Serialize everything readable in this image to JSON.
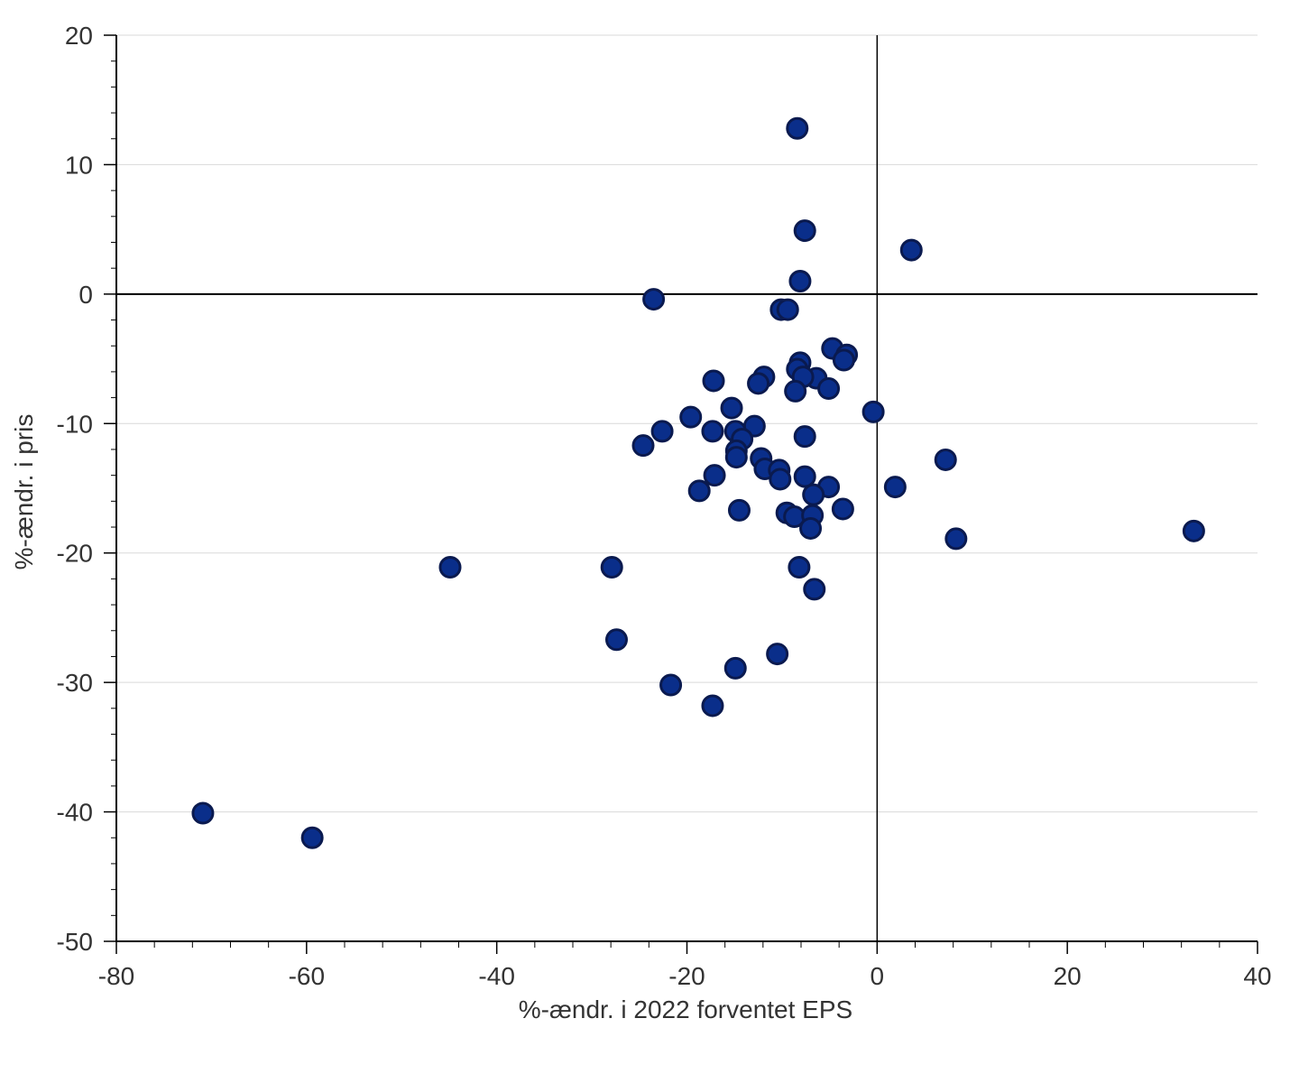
{
  "chart_data": {
    "type": "scatter",
    "title": "",
    "xlabel": "%-ændr. i 2022 forventet EPS",
    "ylabel": "%-ændr. i pris",
    "xlim": [
      -80,
      40
    ],
    "ylim": [
      -50,
      20
    ],
    "x_ticks": [
      "-80",
      "-60",
      "-40",
      "-20",
      "0",
      "20",
      "40"
    ],
    "y_ticks": [
      "20",
      "10",
      "0",
      "-10",
      "-20",
      "-30",
      "-40",
      "-50"
    ],
    "grid": "horizontal",
    "legend": "none",
    "colors": {
      "marker_fill": "#0a2e8a",
      "marker_edge": "#0a1a4f",
      "grid": "#d9d9d9",
      "axis": "#000000"
    },
    "series": [
      {
        "points": [
          [
            -8.4,
            12.8
          ],
          [
            -7.6,
            4.9
          ],
          [
            3.6,
            3.4
          ],
          [
            -8.1,
            1.0
          ],
          [
            -23.5,
            -0.4
          ],
          [
            -10.1,
            -1.2
          ],
          [
            -9.4,
            -1.2
          ],
          [
            -4.7,
            -4.2
          ],
          [
            -3.2,
            -4.7
          ],
          [
            -3.5,
            -5.1
          ],
          [
            -8.1,
            -5.3
          ],
          [
            -8.4,
            -5.8
          ],
          [
            -11.9,
            -6.4
          ],
          [
            -17.2,
            -6.7
          ],
          [
            -6.4,
            -6.5
          ],
          [
            -7.8,
            -6.4
          ],
          [
            -12.5,
            -6.9
          ],
          [
            -5.1,
            -7.3
          ],
          [
            -8.6,
            -7.5
          ],
          [
            -15.3,
            -8.8
          ],
          [
            -0.4,
            -9.1
          ],
          [
            -19.6,
            -9.5
          ],
          [
            -12.9,
            -10.2
          ],
          [
            -14.9,
            -10.6
          ],
          [
            -17.3,
            -10.6
          ],
          [
            -22.6,
            -10.6
          ],
          [
            -14.2,
            -11.2
          ],
          [
            -7.6,
            -11.0
          ],
          [
            -24.6,
            -11.7
          ],
          [
            -14.8,
            -12.1
          ],
          [
            -12.2,
            -12.7
          ],
          [
            -14.8,
            -12.6
          ],
          [
            -11.8,
            -13.5
          ],
          [
            -10.3,
            -13.6
          ],
          [
            -17.1,
            -14.0
          ],
          [
            -7.6,
            -14.1
          ],
          [
            -10.2,
            -14.3
          ],
          [
            7.2,
            -12.8
          ],
          [
            -5.1,
            -14.9
          ],
          [
            1.9,
            -14.9
          ],
          [
            -6.7,
            -15.5
          ],
          [
            -18.7,
            -15.2
          ],
          [
            -3.6,
            -16.6
          ],
          [
            -14.5,
            -16.7
          ],
          [
            -9.5,
            -16.9
          ],
          [
            -8.7,
            -17.2
          ],
          [
            -6.8,
            -17.1
          ],
          [
            -7.0,
            -18.1
          ],
          [
            8.3,
            -18.9
          ],
          [
            33.3,
            -18.3
          ],
          [
            -44.9,
            -21.1
          ],
          [
            -27.9,
            -21.1
          ],
          [
            -8.2,
            -21.1
          ],
          [
            -6.6,
            -22.8
          ],
          [
            -27.4,
            -26.7
          ],
          [
            -10.5,
            -27.8
          ],
          [
            -14.9,
            -28.9
          ],
          [
            -21.7,
            -30.2
          ],
          [
            -17.3,
            -31.8
          ],
          [
            -70.9,
            -40.1
          ],
          [
            -59.4,
            -42.0
          ]
        ]
      }
    ]
  }
}
